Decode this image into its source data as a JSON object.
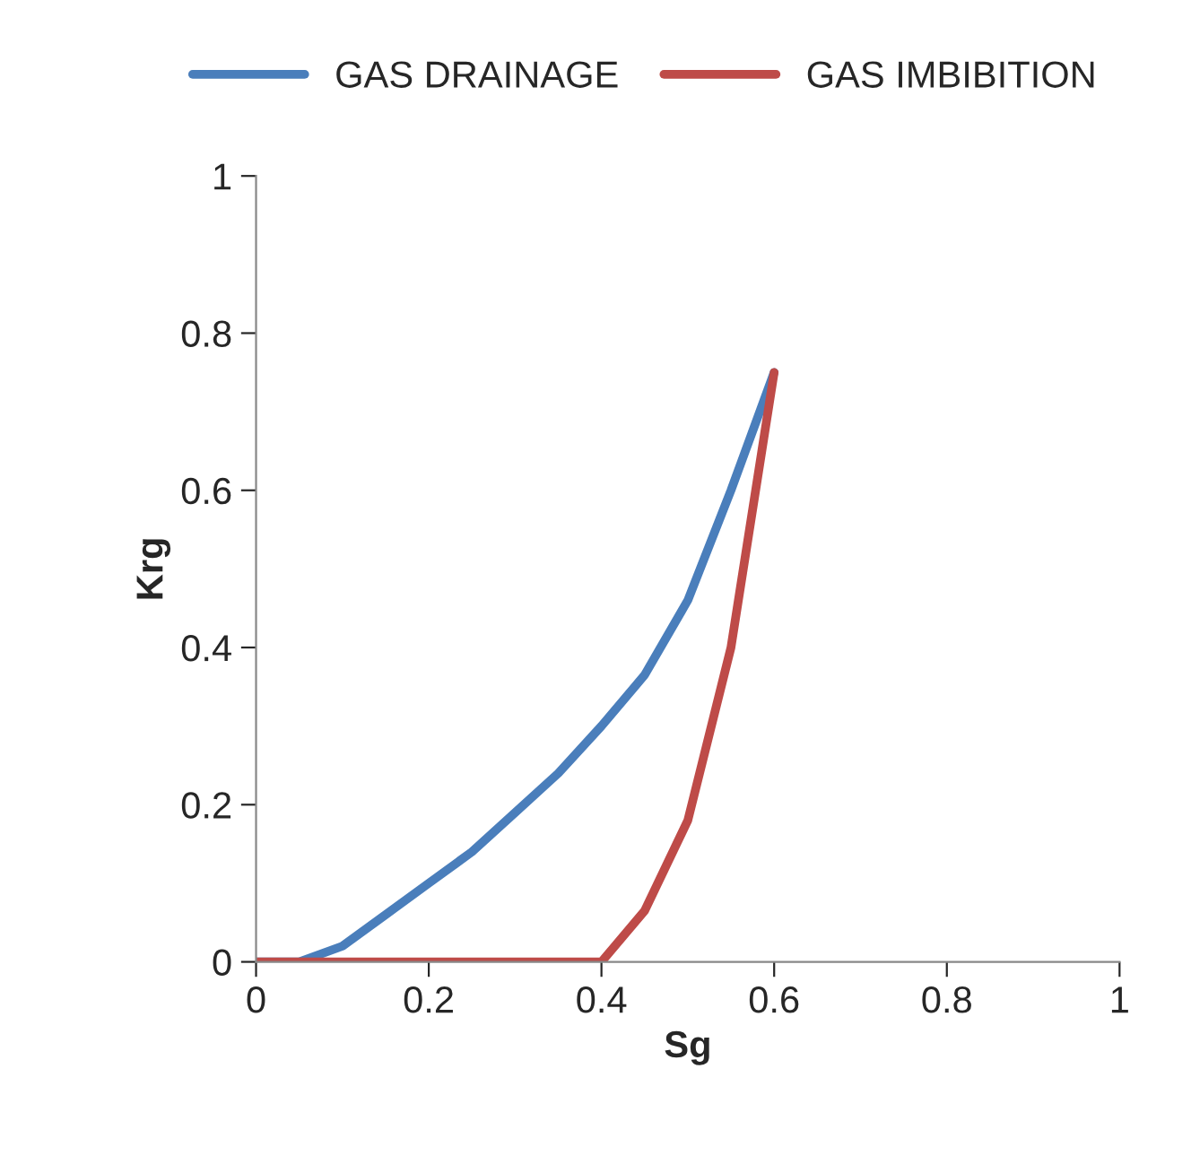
{
  "chart_data": {
    "type": "line",
    "xlabel": "Sg",
    "ylabel": "Krg",
    "x": [
      0,
      0.05,
      0.1,
      0.15,
      0.2,
      0.25,
      0.3,
      0.35,
      0.4,
      0.45,
      0.5,
      0.55,
      0.6
    ],
    "series": [
      {
        "name": "GAS DRAINAGE",
        "color": "#4a7ebb",
        "values": [
          0,
          0,
          0.02,
          0.06,
          0.1,
          0.14,
          0.19,
          0.24,
          0.3,
          0.365,
          0.46,
          0.6,
          0.75
        ]
      },
      {
        "name": "GAS IMBIBITION",
        "color": "#be4b48",
        "values": [
          0,
          0,
          0,
          0,
          0,
          0,
          0,
          0,
          0,
          0.065,
          0.18,
          0.4,
          0.75
        ]
      }
    ],
    "xlim": [
      0,
      1
    ],
    "xticks": [
      0,
      0.2,
      0.4,
      0.6,
      0.8,
      1
    ],
    "ylim": [
      0,
      1
    ],
    "yticks": [
      0,
      0.2,
      0.4,
      0.6,
      0.8,
      1
    ],
    "grid": false,
    "legend": "top",
    "marker": "none",
    "line_style": "solid"
  }
}
